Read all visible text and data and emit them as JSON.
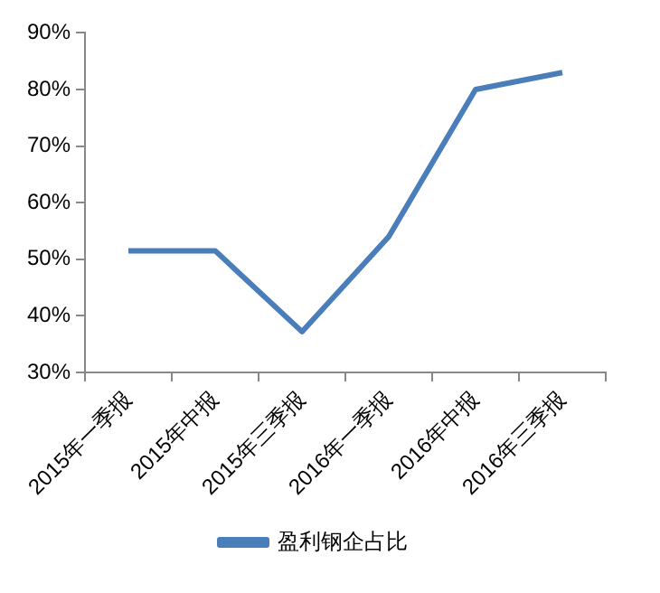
{
  "chart_data": {
    "type": "line",
    "categories": [
      "2015年一季报",
      "2015年中报",
      "2015年三季报",
      "2016年一季报",
      "2016年中报",
      "2016年三季报"
    ],
    "series": [
      {
        "name": "盈利钢企占比",
        "color": "#4a7ebb",
        "values": [
          51.5,
          51.5,
          37.2,
          54,
          80,
          83
        ]
      }
    ],
    "ylim": [
      30,
      90
    ],
    "yticks": [
      {
        "value": 30,
        "label": "30%"
      },
      {
        "value": 40,
        "label": "40%"
      },
      {
        "value": 50,
        "label": "50%"
      },
      {
        "value": 60,
        "label": "60%"
      },
      {
        "value": 70,
        "label": "70%"
      },
      {
        "value": 80,
        "label": "80%"
      },
      {
        "value": 90,
        "label": "90%"
      }
    ],
    "grid": false,
    "legend": "bottom",
    "marker": "none",
    "line_style": "solid"
  }
}
